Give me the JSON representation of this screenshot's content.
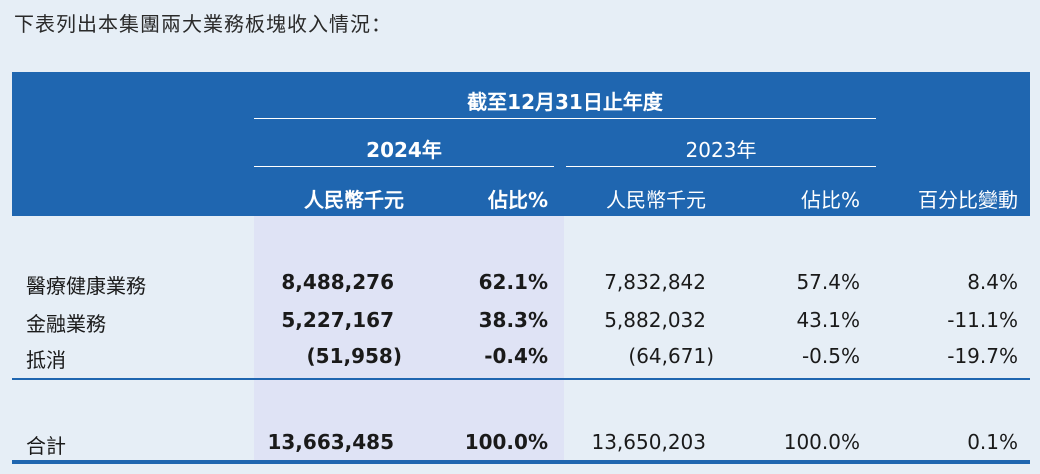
{
  "intro_text": "下表列出本集團兩大業務板塊收入情況：",
  "header": {
    "period": "截至12月31日止年度",
    "year_2024": "2024年",
    "year_2023": "2023年",
    "col_amount_2024": "人民幣千元",
    "col_share_2024": "佔比%",
    "col_amount_2023": "人民幣千元",
    "col_share_2023": "佔比%",
    "col_change": "百分比變動"
  },
  "rows": [
    {
      "label": "醫療健康業務",
      "amount_2024": "8,488,276",
      "share_2024": "62.1%",
      "amount_2023": "7,832,842",
      "share_2023": "57.4%",
      "change": "8.4%"
    },
    {
      "label": "金融業務",
      "amount_2024": "5,227,167",
      "share_2024": "38.3%",
      "amount_2023": "5,882,032",
      "share_2023": "43.1%",
      "change": "-11.1%"
    },
    {
      "label": "抵消",
      "amount_2024": "(51,958)",
      "share_2024": "-0.4%",
      "amount_2023": "(64,671)",
      "share_2023": "-0.5%",
      "change": "-19.7%"
    }
  ],
  "total": {
    "label": "合計",
    "amount_2024": "13,663,485",
    "share_2024": "100.0%",
    "amount_2023": "13,650,203",
    "share_2023": "100.0%",
    "change": "0.1%"
  },
  "colors": {
    "header_bg": "#1f66b0",
    "highlight_bg": "#dfe3f5",
    "page_bg": "#e6eef6"
  }
}
